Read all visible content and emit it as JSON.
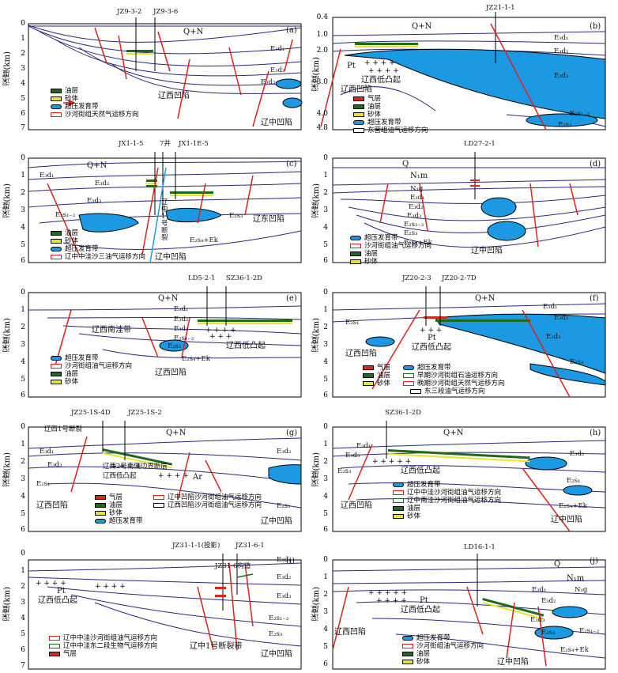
{
  "axis_title": "深度(km)",
  "colors": {
    "overpressure": "#1b9ae3",
    "oil": "#1c6b1c",
    "sand": "#e8e42a",
    "gas": "#d8281e",
    "fault": "#e0201c",
    "formation": "#2a2a7a"
  },
  "panels": [
    {
      "id": "a",
      "letter": "(a)",
      "wells": [
        "JZ9-3-2",
        "JZ9-3-6"
      ],
      "ticks": [
        "0",
        "1",
        "2",
        "3",
        "4",
        "5",
        "6",
        "7"
      ],
      "labels": [
        "Q+N",
        "E₃d₁",
        "E₃d₂",
        "E₃d₃",
        "辽西凹陷",
        "辽中凹陷"
      ],
      "legend": [
        "油层",
        "砂体",
        "超压发育带",
        "沙河街组天然气运移方向"
      ]
    },
    {
      "id": "b",
      "letter": "(b)",
      "wells": [
        "JZ21-1-1"
      ],
      "ticks": [
        "0.4",
        "1.0",
        "2.0",
        "3.0",
        "4.0",
        "4.8"
      ],
      "labels": [
        "Q+N",
        "E₃d₁",
        "E₃d₂",
        "E₃d₃",
        "E₂s₁₋₂",
        "E₂s₃",
        "Pt",
        "辽西低凸起",
        "辽西凹陷"
      ],
      "legend": [
        "气层",
        "油层",
        "砂体",
        "超压发育带",
        "东营组油气运移方向"
      ]
    },
    {
      "id": "c",
      "letter": "(c)",
      "wells": [
        "JX1-1-5",
        "7井",
        "JX1-1E-5"
      ],
      "ticks": [
        "0",
        "1",
        "2",
        "3",
        "4",
        "5",
        "6"
      ],
      "labels": [
        "Q+N",
        "E₃d₁",
        "E₃d₂",
        "E₃d₃",
        "E₂s₁₋₂",
        "E₂s₃",
        "E₂s₄+Ek",
        "辽东凹陷",
        "辽中凹陷",
        "辽中1号断裂"
      ],
      "legend": [
        "油层",
        "砂体",
        "超压发育带",
        "辽中中洼沙三油气运移方向"
      ]
    },
    {
      "id": "d",
      "letter": "(d)",
      "wells": [
        "LD27-2-1"
      ],
      "ticks": [
        "0",
        "1",
        "2",
        "3",
        "4",
        "5",
        "6"
      ],
      "labels": [
        "Q",
        "N₁m",
        "N₁g",
        "E₃d₁",
        "E₃d₂",
        "E₃d₃",
        "E₂s₁₋₂",
        "E₂s₃",
        "E₂s₄+Ek",
        "辽中凹陷"
      ],
      "legend": [
        "超压发育带",
        "沙河街组油气运移方向",
        "油层",
        "砂体"
      ]
    },
    {
      "id": "e",
      "letter": "(e)",
      "wells": [
        "LD5-2-1",
        "SZ36-1-2D"
      ],
      "ticks": [
        "0",
        "1",
        "2",
        "3",
        "4",
        "5",
        "6"
      ],
      "labels": [
        "Q+N",
        "E₃d₁",
        "E₃d₂",
        "E₃d₃",
        "E₂s₁₋₂",
        "E₂s₃",
        "E₂s₄+Ek",
        "辽西南洼带",
        "辽西低凸起",
        "辽西凹陷"
      ],
      "legend": [
        "超压发育带",
        "沙河街组油气运移方向",
        "油层",
        "砂体"
      ]
    },
    {
      "id": "f",
      "letter": "(f)",
      "wells": [
        "JZ20-2-3",
        "JZ20-2-7D"
      ],
      "ticks": [
        "0",
        "1",
        "2",
        "3",
        "4",
        "5",
        "6"
      ],
      "labels": [
        "Q+N",
        "E₃d₁",
        "E₃d₂",
        "E₃d₃",
        "E₂s₁",
        "E₂s₃",
        "Pt",
        "辽西凹陷",
        "辽西低凸起"
      ],
      "legend": [
        "气层",
        "油层",
        "砂体",
        "超压发育带",
        "早期沙河街组石油运移方向",
        "晚期沙河街组天然气运移方向",
        "东三段油气运移方向"
      ]
    },
    {
      "id": "g",
      "letter": "(g)",
      "wells": [
        "JZ25-1S-4D",
        "JZ25-1S-2"
      ],
      "ticks": [
        "0",
        "1",
        "2",
        "3",
        "4",
        "5",
        "6"
      ],
      "labels": [
        "Q+N",
        "E₃d₁",
        "E₃d₂",
        "E₃d₃",
        "E₂s₁",
        "E₂s₃",
        "Ar",
        "辽西1号断裂",
        "辽西2号南侧边界断层",
        "辽西低凸起",
        "辽西凹陷",
        "辽中凹陷"
      ],
      "legend": [
        "气层",
        "油层",
        "砂体",
        "超压发育带",
        "辽中凹陷沙河街组油气运移方向",
        "辽西凹陷沙河街组油气运移方向"
      ]
    },
    {
      "id": "h",
      "letter": "(h)",
      "wells": [
        "SZ36-1-2D"
      ],
      "ticks": [
        "0",
        "1",
        "2",
        "3",
        "4",
        "5",
        "6"
      ],
      "labels": [
        "Q+N",
        "E₃d₁",
        "E₃d₂",
        "E₃d₃",
        "E₂s₁",
        "E₂s₃",
        "E₂s₄+Ek",
        "辽西低凸起",
        "辽西凹陷",
        "辽中凹陷"
      ],
      "legend": [
        "超压发育带",
        "辽中中洼沙河街组油气运移方向",
        "辽中南洼沙河街组油气运移方向",
        "油层",
        "砂体"
      ]
    },
    {
      "id": "i",
      "letter": "(i)",
      "wells": [
        "JZ31-1-1(投影)",
        "JZ31-6-1"
      ],
      "ticks": [
        "0",
        "1",
        "2",
        "3",
        "4",
        "5",
        "6",
        "7"
      ],
      "labels": [
        "E₃d₁",
        "E₃d₂",
        "E₃d₃",
        "E₂s₁₋₂",
        "E₂s₃",
        "Pt",
        "辽西低凸起",
        "辽中1号断裂带",
        "辽中凹陷",
        "JZ31-6构造"
      ],
      "legend": [
        "辽中中洼沙河街组油气运移方向",
        "辽中中洼东二段生物气运移方向",
        "气层"
      ]
    },
    {
      "id": "j",
      "letter": "(j)",
      "wells": [
        "LD16-1-1"
      ],
      "ticks": [
        "0",
        "1",
        "2",
        "3",
        "4",
        "5",
        "6"
      ],
      "labels": [
        "Q",
        "N₁m",
        "N₁g",
        "E₃d₁",
        "E₃d₂",
        "E₃d₃",
        "E₂s₁₋₂",
        "E₂s₃",
        "E₂s₄+Ek",
        "Pt",
        "辽西低凸起",
        "辽西凹陷",
        "辽中凹陷"
      ],
      "legend": [
        "超压发育带",
        "沙河街组油气运移方向",
        "油层",
        "砂体"
      ]
    }
  ]
}
